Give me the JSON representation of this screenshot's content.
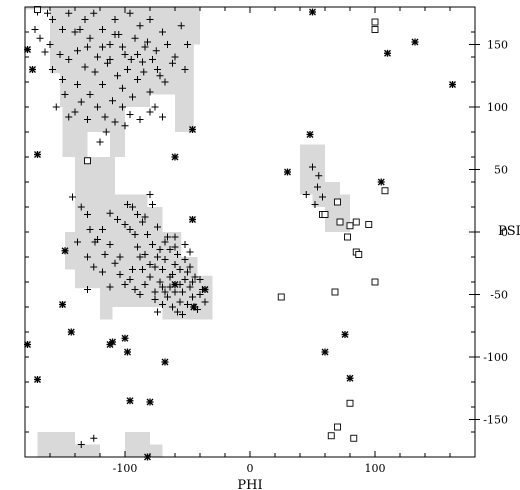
{
  "chart_data": {
    "type": "scatter",
    "title": "",
    "xlabel": "PHI",
    "ylabel": "PSI",
    "xlim": [
      -180,
      180
    ],
    "ylim": [
      -180,
      180
    ],
    "x_ticks": [
      -100,
      0,
      100
    ],
    "y_ticks": [
      -150,
      -100,
      -50,
      0,
      50,
      100,
      150
    ],
    "grid": false,
    "legend": "none",
    "colors": {
      "region": "#d9d9d9",
      "marker": "#000000",
      "frame": "#000000"
    },
    "regions": [
      {
        "polygon": [
          [
            -180,
            180
          ],
          [
            -180,
            178
          ],
          [
            -160,
            178
          ],
          [
            -160,
            127
          ],
          [
            -152,
            127
          ],
          [
            -152,
            100
          ],
          [
            -150,
            100
          ],
          [
            -150,
            60
          ],
          [
            -130,
            60
          ],
          [
            -130,
            80
          ],
          [
            -112,
            80
          ],
          [
            -112,
            60
          ],
          [
            -100,
            60
          ],
          [
            -100,
            100
          ],
          [
            -80,
            100
          ],
          [
            -80,
            110
          ],
          [
            -60,
            110
          ],
          [
            -60,
            80
          ],
          [
            -45,
            80
          ],
          [
            -45,
            150
          ],
          [
            -40,
            150
          ],
          [
            -40,
            180
          ]
        ]
      },
      {
        "polygon": [
          [
            -140,
            60
          ],
          [
            -108,
            60
          ],
          [
            -108,
            30
          ],
          [
            -82,
            30
          ],
          [
            -82,
            20
          ],
          [
            -70,
            20
          ],
          [
            -70,
            0
          ],
          [
            -55,
            0
          ],
          [
            -55,
            -20
          ],
          [
            -42,
            -20
          ],
          [
            -42,
            -35
          ],
          [
            -30,
            -35
          ],
          [
            -30,
            -70
          ],
          [
            -70,
            -70
          ],
          [
            -70,
            -60
          ],
          [
            -110,
            -60
          ],
          [
            -110,
            -70
          ],
          [
            -120,
            -70
          ],
          [
            -120,
            -45
          ],
          [
            -140,
            -45
          ],
          [
            -140,
            -30
          ],
          [
            -148,
            -30
          ],
          [
            -148,
            0
          ],
          [
            -140,
            0
          ]
        ]
      },
      {
        "polygon": [
          [
            40,
            70
          ],
          [
            60,
            70
          ],
          [
            60,
            40
          ],
          [
            72,
            40
          ],
          [
            72,
            30
          ],
          [
            80,
            30
          ],
          [
            80,
            0
          ],
          [
            60,
            0
          ],
          [
            60,
            20
          ],
          [
            50,
            20
          ],
          [
            50,
            30
          ],
          [
            40,
            30
          ]
        ]
      },
      {
        "polygon": [
          [
            -170,
            -180
          ],
          [
            -170,
            -160
          ],
          [
            -140,
            -160
          ],
          [
            -140,
            -170
          ],
          [
            -120,
            -170
          ],
          [
            -120,
            -180
          ]
        ]
      },
      {
        "polygon": [
          [
            -100,
            -180
          ],
          [
            -100,
            -160
          ],
          [
            -80,
            -160
          ],
          [
            -80,
            -170
          ],
          [
            -70,
            -170
          ],
          [
            -70,
            -180
          ]
        ]
      }
    ],
    "series": [
      {
        "marker": "plus",
        "points": [
          [
            -172,
            162
          ],
          [
            -168,
            155
          ],
          [
            -160,
            150
          ],
          [
            -158,
            170
          ],
          [
            -150,
            162
          ],
          [
            -152,
            142
          ],
          [
            -145,
            175
          ],
          [
            -140,
            160
          ],
          [
            -138,
            145
          ],
          [
            -132,
            170
          ],
          [
            -128,
            155
          ],
          [
            -125,
            175
          ],
          [
            -122,
            140
          ],
          [
            -118,
            162
          ],
          [
            -112,
            150
          ],
          [
            -108,
            170
          ],
          [
            -105,
            158
          ],
          [
            -100,
            142
          ],
          [
            -96,
            175
          ],
          [
            -92,
            155
          ],
          [
            -88,
            165
          ],
          [
            -84,
            148
          ],
          [
            -80,
            170
          ],
          [
            -75,
            145
          ],
          [
            -70,
            160
          ],
          [
            -66,
            150
          ],
          [
            -62,
            135
          ],
          [
            -158,
            130
          ],
          [
            -150,
            122
          ],
          [
            -145,
            138
          ],
          [
            -138,
            118
          ],
          [
            -132,
            132
          ],
          [
            -128,
            110
          ],
          [
            -124,
            128
          ],
          [
            -118,
            118
          ],
          [
            -114,
            135
          ],
          [
            -110,
            105
          ],
          [
            -106,
            125
          ],
          [
            -102,
            115
          ],
          [
            -98,
            130
          ],
          [
            -94,
            108
          ],
          [
            -90,
            122
          ],
          [
            -85,
            128
          ],
          [
            -80,
            112
          ],
          [
            -76,
            100
          ],
          [
            -72,
            125
          ],
          [
            -68,
            120
          ],
          [
            -60,
            140
          ],
          [
            -155,
            100
          ],
          [
            -148,
            110
          ],
          [
            -140,
            96
          ],
          [
            -135,
            104
          ],
          [
            -130,
            90
          ],
          [
            -122,
            100
          ],
          [
            -116,
            92
          ],
          [
            -108,
            88
          ],
          [
            -102,
            100
          ],
          [
            -96,
            94
          ],
          [
            -88,
            90
          ],
          [
            -80,
            96
          ],
          [
            -70,
            92
          ],
          [
            -120,
            72
          ],
          [
            -115,
            80
          ],
          [
            -100,
            85
          ],
          [
            -145,
            92
          ],
          [
            -108,
            158
          ],
          [
            -102,
            148
          ],
          [
            -95,
            138
          ],
          [
            -90,
            142
          ],
          [
            -86,
            136
          ],
          [
            -82,
            152
          ],
          [
            -78,
            138
          ],
          [
            -74,
            130
          ],
          [
            -118,
            148
          ],
          [
            -112,
            138
          ],
          [
            -130,
            148
          ],
          [
            -136,
            162
          ],
          [
            -164,
            144
          ],
          [
            -170,
            176
          ],
          [
            -162,
            175
          ],
          [
            -55,
            165
          ],
          [
            -50,
            150
          ],
          [
            -52,
            130
          ],
          [
            -142,
            28
          ],
          [
            -135,
            20
          ],
          [
            -130,
            14
          ],
          [
            -128,
            2
          ],
          [
            -122,
            -6
          ],
          [
            -138,
            -8
          ],
          [
            -130,
            -20
          ],
          [
            -125,
            -28
          ],
          [
            -118,
            -32
          ],
          [
            -112,
            -10
          ],
          [
            -108,
            -25
          ],
          [
            -104,
            -34
          ],
          [
            -100,
            -42
          ],
          [
            -96,
            -38
          ],
          [
            -112,
            15
          ],
          [
            -106,
            10
          ],
          [
            -100,
            6
          ],
          [
            -96,
            2
          ],
          [
            -98,
            22
          ],
          [
            -92,
            -2
          ],
          [
            -90,
            -12
          ],
          [
            -88,
            -20
          ],
          [
            -86,
            -30
          ],
          [
            -84,
            -42
          ],
          [
            -80,
            -36
          ],
          [
            -76,
            -48
          ],
          [
            -72,
            -40
          ],
          [
            -70,
            -30
          ],
          [
            -68,
            -22
          ],
          [
            -66,
            -52
          ],
          [
            -64,
            -44
          ],
          [
            -62,
            -34
          ],
          [
            -60,
            -26
          ],
          [
            -58,
            -18
          ],
          [
            -56,
            -56
          ],
          [
            -54,
            -48
          ],
          [
            -52,
            -38
          ],
          [
            -50,
            -58
          ],
          [
            -48,
            -44
          ],
          [
            -46,
            -52
          ],
          [
            -44,
            -36
          ],
          [
            -42,
            -62
          ],
          [
            -40,
            -50
          ],
          [
            -38,
            -46
          ],
          [
            -36,
            -56
          ],
          [
            -70,
            -58
          ],
          [
            -74,
            -20
          ],
          [
            -78,
            -10
          ],
          [
            -82,
            -2
          ],
          [
            -86,
            8
          ],
          [
            -90,
            14
          ],
          [
            -94,
            20
          ],
          [
            -74,
            4
          ],
          [
            -68,
            -8
          ],
          [
            -64,
            -14
          ],
          [
            -60,
            -4
          ],
          [
            -56,
            -30
          ],
          [
            -52,
            -22
          ],
          [
            -48,
            -28
          ],
          [
            -92,
            -46
          ],
          [
            -88,
            -50
          ],
          [
            -94,
            -30
          ],
          [
            -62,
            -60
          ],
          [
            -58,
            -64
          ],
          [
            -54,
            -66
          ],
          [
            -66,
            -4
          ],
          [
            -72,
            -14
          ],
          [
            -76,
            -28
          ],
          [
            -84,
            -18
          ],
          [
            -80,
            -26
          ],
          [
            -70,
            -44
          ],
          [
            -60,
            -48
          ],
          [
            -50,
            -32
          ],
          [
            -46,
            -40
          ],
          [
            -40,
            -38
          ],
          [
            -44,
            -60
          ],
          [
            -56,
            -42
          ],
          [
            -64,
            -36
          ],
          [
            -68,
            -48
          ],
          [
            -104,
            -20
          ],
          [
            -116,
            -18
          ],
          [
            -124,
            -8
          ],
          [
            -118,
            2
          ],
          [
            -84,
            12
          ],
          [
            -78,
            22
          ],
          [
            -80,
            30
          ],
          [
            -76,
            -54
          ],
          [
            -74,
            -64
          ],
          [
            -112,
            -44
          ],
          [
            -130,
            -46
          ],
          [
            -60,
            -12
          ],
          [
            -52,
            -10
          ],
          [
            -48,
            -16
          ],
          [
            50,
            52
          ],
          [
            55,
            45
          ],
          [
            54,
            36
          ],
          [
            58,
            28
          ],
          [
            52,
            22
          ],
          [
            45,
            30
          ],
          [
            -135,
            -170
          ],
          [
            -125,
            -165
          ]
        ]
      },
      {
        "marker": "asterisk",
        "points": [
          [
            -178,
            146
          ],
          [
            -174,
            130
          ],
          [
            -170,
            62
          ],
          [
            -178,
            -90
          ],
          [
            -170,
            -118
          ],
          [
            -148,
            -15
          ],
          [
            -150,
            -58
          ],
          [
            -143,
            -80
          ],
          [
            -112,
            -90
          ],
          [
            -110,
            -88
          ],
          [
            -100,
            -85
          ],
          [
            -98,
            -96
          ],
          [
            -96,
            -135
          ],
          [
            -80,
            -136
          ],
          [
            -82,
            -180
          ],
          [
            -68,
            -104
          ],
          [
            -60,
            -42
          ],
          [
            -60,
            60
          ],
          [
            -45,
            -60
          ],
          [
            -46,
            82
          ],
          [
            -46,
            10
          ],
          [
            -36,
            -46
          ],
          [
            50,
            176
          ],
          [
            48,
            78
          ],
          [
            30,
            48
          ],
          [
            60,
            -96
          ],
          [
            76,
            -82
          ],
          [
            80,
            -117
          ],
          [
            105,
            40
          ],
          [
            110,
            143
          ],
          [
            132,
            152
          ],
          [
            162,
            118
          ]
        ]
      },
      {
        "marker": "square",
        "points": [
          [
            -170,
            178
          ],
          [
            -130,
            57
          ],
          [
            100,
            168
          ],
          [
            100,
            162
          ],
          [
            108,
            33
          ],
          [
            68,
            -48
          ],
          [
            58,
            14
          ],
          [
            70,
            24
          ],
          [
            60,
            14
          ],
          [
            72,
            8
          ],
          [
            80,
            5
          ],
          [
            85,
            8
          ],
          [
            95,
            6
          ],
          [
            78,
            -4
          ],
          [
            85,
            -16
          ],
          [
            87,
            -18
          ],
          [
            100,
            -40
          ],
          [
            80,
            -137
          ],
          [
            83,
            -165
          ],
          [
            65,
            -163
          ],
          [
            70,
            -156
          ],
          [
            25,
            -52
          ]
        ]
      }
    ]
  }
}
